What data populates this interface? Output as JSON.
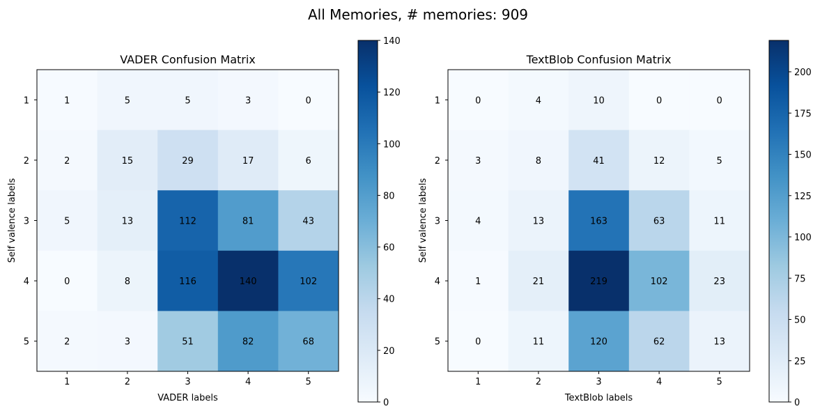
{
  "suptitle": "All Memories, # memories: 909",
  "chart_data": [
    {
      "type": "heatmap",
      "title": "VADER Confusion Matrix",
      "xlabel": "VADER labels",
      "ylabel": "Self valence labels",
      "x_categories": [
        "1",
        "2",
        "3",
        "4",
        "5"
      ],
      "y_categories": [
        "1",
        "2",
        "3",
        "4",
        "5"
      ],
      "values": [
        [
          1,
          5,
          5,
          3,
          0
        ],
        [
          2,
          15,
          29,
          17,
          6
        ],
        [
          5,
          13,
          112,
          81,
          43
        ],
        [
          0,
          8,
          116,
          140,
          102
        ],
        [
          2,
          3,
          51,
          82,
          68
        ]
      ],
      "colorscale": "Blues",
      "vmin": 0,
      "vmax": 140,
      "colorbar_ticks": [
        0,
        20,
        40,
        60,
        80,
        100,
        120,
        140
      ]
    },
    {
      "type": "heatmap",
      "title": "TextBlob Confusion Matrix",
      "xlabel": "TextBlob labels",
      "ylabel": "Self valence labels",
      "x_categories": [
        "1",
        "2",
        "3",
        "4",
        "5"
      ],
      "y_categories": [
        "1",
        "2",
        "3",
        "4",
        "5"
      ],
      "values": [
        [
          0,
          4,
          10,
          0,
          0
        ],
        [
          3,
          8,
          41,
          12,
          5
        ],
        [
          4,
          13,
          163,
          63,
          11
        ],
        [
          1,
          21,
          219,
          102,
          23
        ],
        [
          0,
          11,
          120,
          62,
          13
        ]
      ],
      "colorscale": "Blues",
      "vmin": 0,
      "vmax": 219,
      "colorbar_ticks": [
        0,
        25,
        50,
        75,
        100,
        125,
        150,
        175,
        200
      ]
    }
  ]
}
